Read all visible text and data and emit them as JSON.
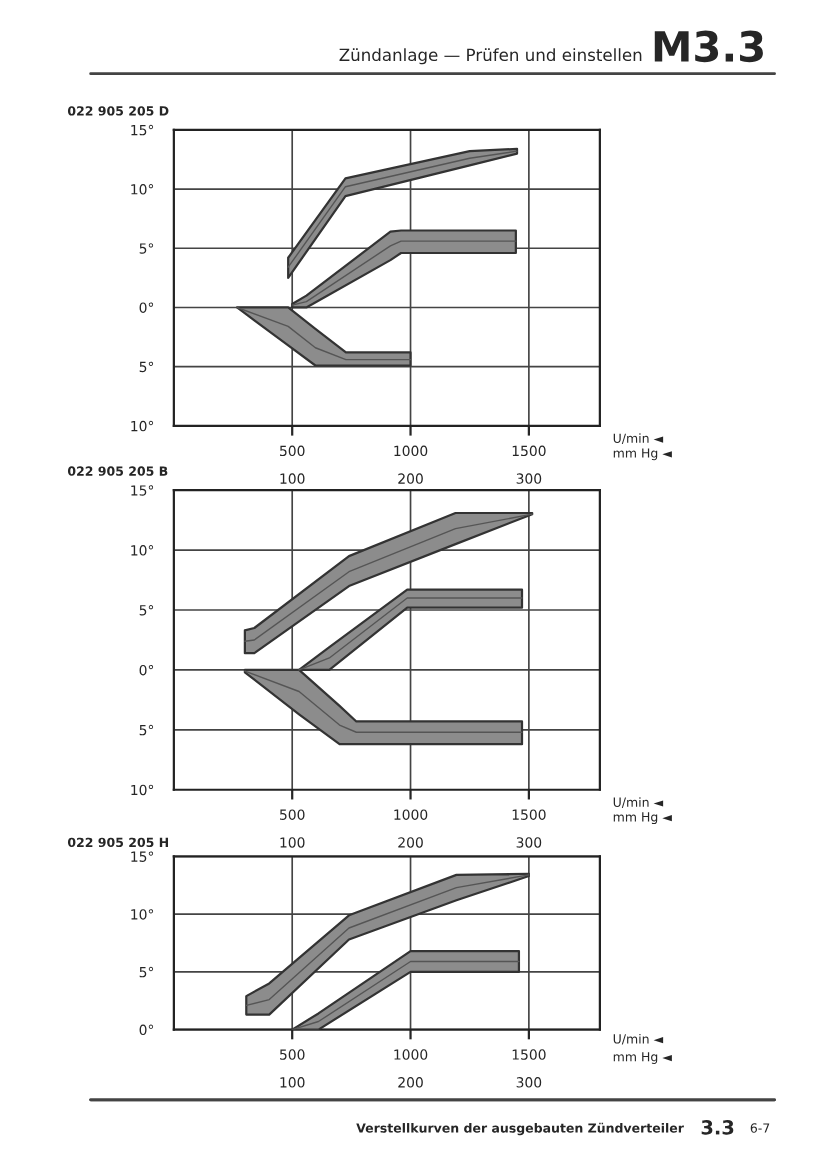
{
  "chart_data": [
    {
      "type": "line",
      "title": "022 905 205 D",
      "annotations": [
        "Zündanlage — Prüfen und einstellen",
        "M3.3"
      ],
      "xlabel": "U/min ◄",
      "x2label": "mm Hg ◄",
      "xlim": [
        0,
        1800
      ],
      "xticks": [
        500,
        1000,
        1500
      ],
      "x2lim": [
        0,
        360
      ],
      "x2ticks": [
        100,
        200,
        300
      ],
      "ylim": [
        -10,
        15
      ],
      "yticks": [
        {
          "value": -10,
          "label": "10°"
        },
        {
          "value": -5,
          "label": "5°"
        },
        {
          "value": 0,
          "label": "0°"
        },
        {
          "value": 5,
          "label": "5°"
        },
        {
          "value": 10,
          "label": "10°"
        },
        {
          "value": 15,
          "label": "15°"
        }
      ],
      "grid": true,
      "series": [
        {
          "color": "#555555",
          "x": [
            483,
            725,
            1250,
            1450
          ],
          "lower": [
            2.5,
            9.4,
            12.0,
            13.0
          ],
          "upper": [
            4.2,
            10.9,
            13.2,
            13.4
          ],
          "values": [
            3.4,
            10.2,
            12.6,
            13.2
          ]
        },
        {
          "color": "#555555",
          "x": [
            500,
            560,
            915,
            960,
            1445
          ],
          "lower": [
            0,
            0,
            4.0,
            4.6,
            4.6
          ],
          "upper": [
            0.3,
            1.0,
            6.4,
            6.5,
            6.5
          ],
          "values": [
            0.2,
            0.5,
            5.2,
            5.6,
            5.6
          ]
        },
        {
          "color": "#555555",
          "x": [
            267,
            483,
            598,
            727,
            1000
          ],
          "lower": [
            0,
            -3.2,
            -4.9,
            -4.9,
            -4.9
          ],
          "upper": [
            0,
            0,
            -1.8,
            -3.8,
            -3.8
          ],
          "values": [
            0,
            -1.6,
            -3.4,
            -4.4,
            -4.4
          ]
        }
      ]
    },
    {
      "type": "line",
      "title": "022 905 205 B",
      "xlabel": "U/min ◄",
      "x2label": "mm Hg ◄",
      "xlim": [
        0,
        1800
      ],
      "xticks": [
        500,
        1000,
        1500
      ],
      "x2lim": [
        0,
        360
      ],
      "x2ticks": [
        100,
        200,
        300
      ],
      "ylim": [
        -10,
        15
      ],
      "yticks": [
        {
          "value": -10,
          "label": "10°"
        },
        {
          "value": -5,
          "label": "5°"
        },
        {
          "value": 0,
          "label": "0°"
        },
        {
          "value": 5,
          "label": "5°"
        },
        {
          "value": 10,
          "label": "10°"
        },
        {
          "value": 15,
          "label": "15°"
        }
      ],
      "grid": true,
      "series": [
        {
          "color": "#555555",
          "x": [
            300,
            340,
            740,
            1190,
            1514
          ],
          "lower": [
            1.4,
            1.4,
            7.0,
            10.5,
            13.0
          ],
          "upper": [
            3.3,
            3.5,
            9.5,
            13.1,
            13.1
          ],
          "values": [
            2.4,
            2.5,
            8.2,
            11.8,
            13.0
          ]
        },
        {
          "color": "#555555",
          "x": [
            529,
            657,
            986,
            1471
          ],
          "lower": [
            0,
            0,
            5.2,
            5.2
          ],
          "upper": [
            0,
            1.9,
            6.7,
            6.7
          ],
          "values": [
            0,
            1.0,
            6.0,
            6.0
          ]
        },
        {
          "color": "#555555",
          "x": [
            300,
            529,
            700,
            771,
            1471
          ],
          "lower": [
            -0.2,
            -3.7,
            -6.2,
            -6.2,
            -6.2
          ],
          "upper": [
            0,
            0,
            -3.0,
            -4.3,
            -4.3
          ],
          "values": [
            -0.1,
            -1.8,
            -4.6,
            -5.2,
            -5.2
          ]
        }
      ]
    },
    {
      "type": "line",
      "title": "022 905 205 H",
      "xlabel": "U/min ◄",
      "x2label": "mm Hg ◄",
      "annotations": [
        "Verstellkurven der ausgebauten Zündverteiler",
        "3.3",
        "6-7"
      ],
      "xlim": [
        0,
        1800
      ],
      "xticks": [
        500,
        1000,
        1500
      ],
      "x2lim": [
        0,
        360
      ],
      "x2ticks": [
        100,
        200,
        300
      ],
      "ylim": [
        0,
        15
      ],
      "yticks": [
        {
          "value": 0,
          "label": "0°"
        },
        {
          "value": 5,
          "label": "5°"
        },
        {
          "value": 10,
          "label": "10°"
        },
        {
          "value": 15,
          "label": "15°"
        }
      ],
      "grid": true,
      "series": [
        {
          "color": "#555555",
          "x": [
            306,
            403,
            740,
            1194,
            1500
          ],
          "lower": [
            1.3,
            1.3,
            7.8,
            11.2,
            13.3
          ],
          "upper": [
            2.9,
            4.0,
            9.9,
            13.4,
            13.5
          ],
          "values": [
            2.1,
            2.6,
            8.8,
            12.3,
            13.4
          ]
        },
        {
          "color": "#555555",
          "x": [
            500,
            611,
            1000,
            1458
          ],
          "lower": [
            0,
            0,
            5.0,
            5.0
          ],
          "upper": [
            0,
            1.4,
            6.8,
            6.8
          ],
          "values": [
            0,
            0.7,
            5.9,
            5.9
          ]
        }
      ]
    }
  ]
}
